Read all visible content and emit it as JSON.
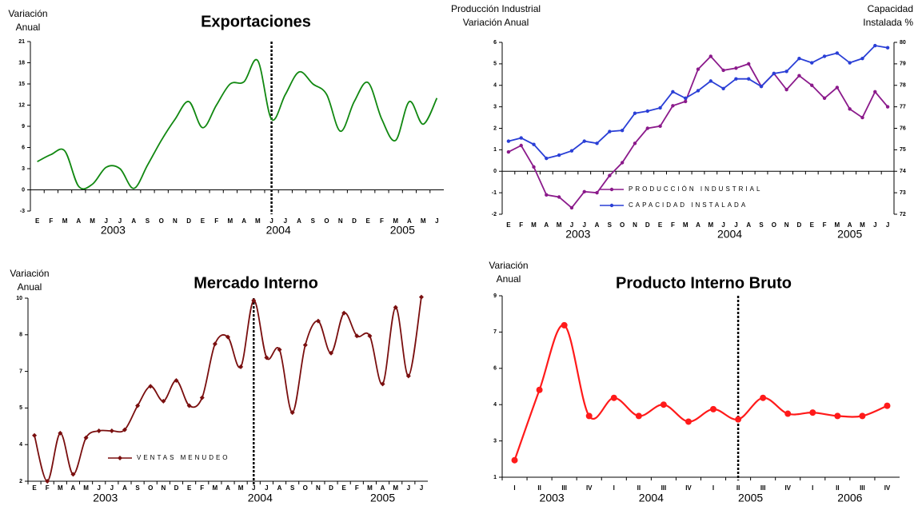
{
  "chart_data": [
    {
      "type": "line",
      "title": "Exportaciones",
      "ylabel": [
        "Variación",
        "Anual"
      ],
      "categories": [
        "E",
        "F",
        "M",
        "A",
        "M",
        "J",
        "J",
        "A",
        "S",
        "O",
        "N",
        "D",
        "E",
        "F",
        "M",
        "A",
        "M",
        "J",
        "J",
        "A",
        "S",
        "O",
        "N",
        "D",
        "E",
        "F",
        "M",
        "A",
        "M",
        "J"
      ],
      "year_labels": [
        "2003",
        "2004",
        "2005"
      ],
      "series": [
        {
          "color": "#118811",
          "values": [
            4,
            5,
            5.5,
            0.5,
            0.8,
            3.2,
            3,
            0.2,
            3.5,
            7,
            10,
            12.5,
            8.8,
            12,
            15,
            15.3,
            18.3,
            10,
            13.5,
            16.7,
            15,
            13.5,
            8.3,
            12.5,
            15.2,
            10,
            7,
            12.5,
            9.3,
            13
          ]
        }
      ],
      "ylim": [
        -3,
        21
      ],
      "yticks": [
        -3,
        0,
        3,
        6,
        9,
        12,
        15,
        18,
        21
      ]
    },
    {
      "type": "line",
      "ylabel": [
        "Producción Industrial",
        "Variación Anual"
      ],
      "y2label": [
        "Capacidad",
        "Instalada  %"
      ],
      "categories": [
        "E",
        "F",
        "M",
        "A",
        "M",
        "J",
        "J",
        "A",
        "S",
        "O",
        "N",
        "D",
        "E",
        "F",
        "M",
        "A",
        "M",
        "J",
        "J",
        "A",
        "S",
        "O",
        "N",
        "D",
        "E",
        "F",
        "M",
        "A",
        "M",
        "J",
        "J"
      ],
      "year_labels": [
        "2003",
        "2004",
        "2005"
      ],
      "series": [
        {
          "name": "PRODUCCIÓN INDUSTRIAL",
          "color": "#8b1a8b",
          "values": [
            0.9,
            1.2,
            0.2,
            -1.1,
            -1.2,
            -1.7,
            -0.95,
            -1.0,
            -0.2,
            0.4,
            1.3,
            2.0,
            2.1,
            3.05,
            3.25,
            4.75,
            5.35,
            4.7,
            4.8,
            5.0,
            3.95,
            4.55,
            3.8,
            4.45,
            4.0,
            3.4,
            3.9,
            2.9,
            2.5,
            3.7,
            3.0
          ]
        },
        {
          "name": "CAPACIDAD INSTALADA",
          "color": "#2a3fd6",
          "axis": "y2",
          "values": [
            75.4,
            75.55,
            75.25,
            74.6,
            74.75,
            74.95,
            75.4,
            75.3,
            75.85,
            75.9,
            76.7,
            76.8,
            76.95,
            77.7,
            77.4,
            77.75,
            78.2,
            77.85,
            78.3,
            78.3,
            77.95,
            78.55,
            78.65,
            79.25,
            79.05,
            79.35,
            79.5,
            79.05,
            79.25,
            79.85,
            79.75
          ]
        }
      ],
      "ylim": [
        -2,
        6
      ],
      "yticks": [
        -2,
        -1,
        0,
        1,
        2,
        3,
        4,
        5,
        6
      ],
      "y2lim": [
        72,
        80
      ],
      "y2ticks": [
        72,
        73,
        74,
        75,
        76,
        77,
        78,
        79,
        80
      ]
    },
    {
      "type": "line",
      "title": "Mercado Interno",
      "ylabel": [
        "Variación",
        "Anual"
      ],
      "categories": [
        "E",
        "F",
        "M",
        "A",
        "M",
        "J",
        "J",
        "A",
        "S",
        "O",
        "N",
        "D",
        "E",
        "F",
        "M",
        "A",
        "M",
        "J",
        "J",
        "A",
        "S",
        "O",
        "N",
        "D",
        "E",
        "F",
        "M",
        "A",
        "M",
        "J",
        "J"
      ],
      "year_labels": [
        "2003",
        "2004",
        "2005"
      ],
      "series": [
        {
          "name": "VENTAS MENUDEO",
          "color": "#7a0f0f",
          "values": [
            4.0,
            2.0,
            4.1,
            2.3,
            3.9,
            4.2,
            4.2,
            4.25,
            5.3,
            6.15,
            5.5,
            6.4,
            5.3,
            5.65,
            8.0,
            8.3,
            7.0,
            9.9,
            7.4,
            7.75,
            5.0,
            7.95,
            9.0,
            7.6,
            9.35,
            8.35,
            8.35,
            6.25,
            9.6,
            6.6,
            10.05
          ]
        }
      ],
      "ylim": [
        2,
        10
      ],
      "yticks": [
        2,
        {
          "value": 3.6,
          "label": "4"
        },
        {
          "value": 5.2,
          "label": "5"
        },
        {
          "value": 6.8,
          "label": "7"
        },
        {
          "value": 8.4,
          "label": "8"
        },
        10
      ]
    },
    {
      "type": "line",
      "title": "Producto Interno Bruto",
      "ylabel": [
        "Variación",
        "Anual"
      ],
      "categories": [
        "I",
        "II",
        "III",
        "IV",
        "I",
        "II",
        "III",
        "IV",
        "I",
        "II",
        "III",
        "IV",
        "I",
        "II",
        "III",
        "IV"
      ],
      "year_labels": [
        "2003",
        "2004",
        "2005",
        "2006"
      ],
      "series": [
        {
          "color": "#ff1a1a",
          "values": [
            1.75,
            4.85,
            7.7,
            3.7,
            4.5,
            3.7,
            4.2,
            3.45,
            4.0,
            3.55,
            4.5,
            3.8,
            3.85,
            3.7,
            3.7,
            4.15
          ]
        }
      ],
      "ylim": [
        1,
        9
      ],
      "yticks": [
        1,
        {
          "value": 2.6,
          "label": "3"
        },
        {
          "value": 4.2,
          "label": "4"
        },
        {
          "value": 5.8,
          "label": "6"
        },
        {
          "value": 7.4,
          "label": "7"
        },
        9
      ]
    }
  ]
}
